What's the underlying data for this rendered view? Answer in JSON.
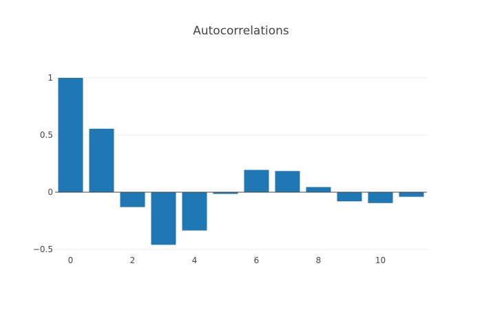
{
  "chart_data": {
    "type": "bar",
    "title": "Autocorrelations",
    "xlabel": "",
    "ylabel": "",
    "x": [
      0,
      1,
      2,
      3,
      4,
      5,
      6,
      7,
      8,
      9,
      10,
      11
    ],
    "values": [
      1.0,
      0.555,
      -0.13,
      -0.46,
      -0.335,
      -0.015,
      0.195,
      0.185,
      0.045,
      -0.08,
      -0.095,
      -0.04
    ],
    "xlim": [
      -0.5,
      11.5
    ],
    "ylim": [
      -0.5,
      1
    ],
    "xticks": [
      0,
      2,
      4,
      6,
      8,
      10
    ],
    "yticks": [
      -0.5,
      0,
      0.5,
      1
    ],
    "ytick_labels": [
      "−0.5",
      "0",
      "0.5",
      "1"
    ],
    "bar_color": "#1f77b4",
    "grid": true,
    "legend": false
  }
}
